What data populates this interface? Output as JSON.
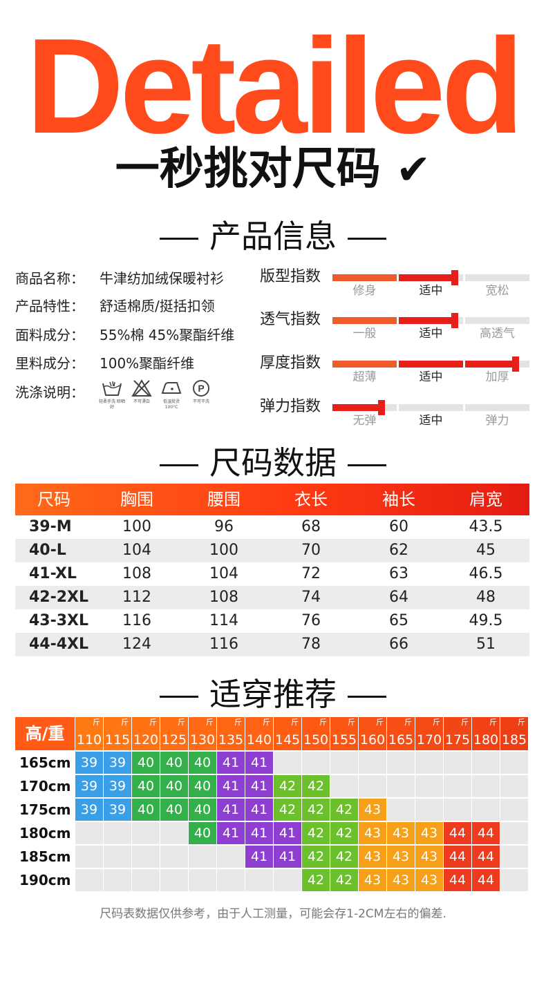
{
  "header": {
    "title": "Detailed",
    "subtitle": "一秒挑对尺码",
    "check": "✔"
  },
  "colors": {
    "brand": "#ff4a1c",
    "accent_red": "#e61f1a",
    "size_39": "#3a9fe6",
    "size_40": "#34b04a",
    "size_41": "#8e3fd1",
    "size_42": "#6cc02c",
    "size_43": "#f5a018",
    "size_44": "#ee3a1e"
  },
  "product_info": {
    "title": "产品信息",
    "items": [
      {
        "label": "商品名称：",
        "value": "牛津纺加绒保暖衬衫"
      },
      {
        "label": "产品特性：",
        "value": "舒适棉质/挺括扣领"
      },
      {
        "label": "面料成分：",
        "value": "55%棉 45%聚酯纤维"
      },
      {
        "label": "里料成分：",
        "value": "100%聚酯纤维"
      },
      {
        "label": "洗涤说明：",
        "value": ""
      }
    ],
    "wash_icons": [
      {
        "icon": "hand-wash-icon",
        "caption": "轻柔手洗 晾晒好"
      },
      {
        "icon": "no-bleach-icon",
        "caption": "不可漂白"
      },
      {
        "icon": "low-iron-icon",
        "caption": "低温熨烫 100°C"
      },
      {
        "icon": "dry-clean-p-icon",
        "caption": "不可干洗"
      }
    ],
    "indices": [
      {
        "label": "版型指数",
        "options": [
          "修身",
          "适中",
          "宽松"
        ],
        "selected": 1,
        "level": 0.62
      },
      {
        "label": "透气指数",
        "options": [
          "一般",
          "适中",
          "高透气"
        ],
        "selected": 1,
        "level": 0.62
      },
      {
        "label": "厚度指数",
        "options": [
          "超薄",
          "适中",
          "加厚"
        ],
        "selected": 1,
        "level": 0.93
      },
      {
        "label": "弹力指数",
        "options": [
          "无弹",
          "适中",
          "弹力"
        ],
        "selected": 1,
        "level": 0.25
      }
    ]
  },
  "size_table": {
    "title": "尺码数据",
    "columns": [
      "尺码",
      "胸围",
      "腰围",
      "衣长",
      "袖长",
      "肩宽"
    ],
    "rows": [
      [
        "39-M",
        "100",
        "96",
        "68",
        "60",
        "43.5"
      ],
      [
        "40-L",
        "104",
        "100",
        "70",
        "62",
        "45"
      ],
      [
        "41-XL",
        "108",
        "104",
        "72",
        "63",
        "46.5"
      ],
      [
        "42-2XL",
        "112",
        "108",
        "74",
        "64",
        "48"
      ],
      [
        "43-3XL",
        "116",
        "114",
        "76",
        "65",
        "49.5"
      ],
      [
        "44-4XL",
        "124",
        "116",
        "78",
        "66",
        "51"
      ]
    ]
  },
  "recommendation": {
    "title": "适穿推荐",
    "corner": "高/重",
    "unit": "斤",
    "weights": [
      "110",
      "115",
      "120",
      "125",
      "130",
      "135",
      "140",
      "145",
      "150",
      "155",
      "160",
      "165",
      "170",
      "175",
      "180",
      "185"
    ],
    "header_colors": [
      "#ff7a14",
      "#ff7614",
      "#ff7214",
      "#ff6e14",
      "#ff6a14",
      "#ff6614",
      "#ff6214",
      "#fe5e14",
      "#fc5a14",
      "#fa5614",
      "#f85214",
      "#f64e14",
      "#f44a14",
      "#f24614",
      "#f04214",
      "#ee3e14"
    ],
    "rows": [
      {
        "height": "165cm",
        "cells": [
          "39",
          "39",
          "40",
          "40",
          "40",
          "41",
          "41",
          "",
          "",
          "",
          "",
          "",
          "",
          "",
          "",
          ""
        ]
      },
      {
        "height": "170cm",
        "cells": [
          "39",
          "39",
          "40",
          "40",
          "40",
          "41",
          "41",
          "42",
          "42",
          "",
          "",
          "",
          "",
          "",
          "",
          ""
        ]
      },
      {
        "height": "175cm",
        "cells": [
          "39",
          "39",
          "40",
          "40",
          "40",
          "41",
          "41",
          "42",
          "42",
          "42",
          "43",
          "",
          "",
          "",
          "",
          ""
        ]
      },
      {
        "height": "180cm",
        "cells": [
          "",
          "",
          "",
          "",
          "40",
          "41",
          "41",
          "41",
          "42",
          "42",
          "43",
          "43",
          "43",
          "44",
          "44",
          ""
        ]
      },
      {
        "height": "185cm",
        "cells": [
          "",
          "",
          "",
          "",
          "",
          "",
          "41",
          "41",
          "42",
          "42",
          "43",
          "43",
          "43",
          "44",
          "44",
          ""
        ]
      },
      {
        "height": "190cm",
        "cells": [
          "",
          "",
          "",
          "",
          "",
          "",
          "",
          "",
          "42",
          "42",
          "43",
          "43",
          "43",
          "44",
          "44",
          ""
        ]
      }
    ]
  },
  "footer": {
    "note": "尺码表数据仅供参考，由于人工测量，可能会存1-2CM左右的偏差."
  }
}
